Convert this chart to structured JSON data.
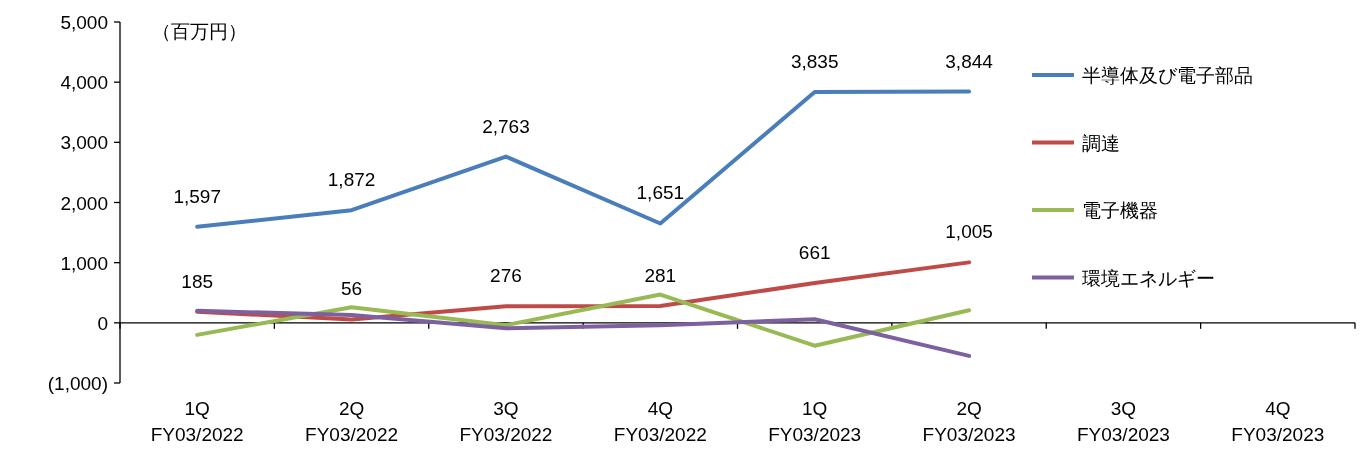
{
  "chart_data": {
    "type": "line",
    "ylabel": "（百万円）",
    "categories": [
      "1Q FY03/2022",
      "2Q FY03/2022",
      "3Q FY03/2022",
      "4Q FY03/2022",
      "1Q FY03/2023",
      "2Q FY03/2023",
      "3Q FY03/2023",
      "4Q FY03/2023"
    ],
    "series": [
      {
        "name": "半導体及び電子部品",
        "color": "#4a7ebb",
        "values": [
          1597,
          1872,
          2763,
          1651,
          3835,
          3844,
          null,
          null
        ],
        "value_labels": [
          "1,597",
          "1,872",
          "2,763",
          "1,651",
          "3,835",
          "3,844",
          null,
          null
        ]
      },
      {
        "name": "調達",
        "color": "#be4b48",
        "values": [
          185,
          56,
          276,
          281,
          661,
          1005,
          null,
          null
        ],
        "value_labels": [
          "185",
          "56",
          "276",
          "281",
          "661",
          "1,005",
          null,
          null
        ]
      },
      {
        "name": "電子機器",
        "color": "#98b954",
        "values": [
          -200,
          260,
          -40,
          470,
          -380,
          210,
          null,
          null
        ]
      },
      {
        "name": "環境エネルギー",
        "color": "#7d60a0",
        "values": [
          200,
          130,
          -90,
          -40,
          60,
          -550,
          null,
          null
        ]
      }
    ],
    "ylim": [
      -1000,
      5000
    ],
    "yticks": [
      {
        "value": -1000,
        "label": "(1,000)"
      },
      {
        "value": 0,
        "label": "0"
      },
      {
        "value": 1000,
        "label": "1,000"
      },
      {
        "value": 2000,
        "label": "2,000"
      },
      {
        "value": 3000,
        "label": "3,000"
      },
      {
        "value": 4000,
        "label": "4,000"
      },
      {
        "value": 5000,
        "label": "5,000"
      }
    ],
    "legend": "right",
    "marker": "none",
    "line_style": "solid"
  }
}
